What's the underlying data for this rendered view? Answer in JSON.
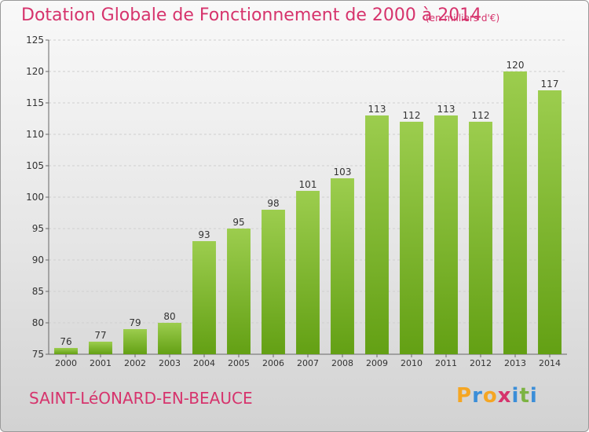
{
  "chart_data": {
    "type": "bar",
    "title": "Dotation Globale de Fonctionnement de 2000 à 2014",
    "subtitle": "(en milliers d'€)",
    "categories": [
      "2000",
      "2001",
      "2002",
      "2003",
      "2004",
      "2005",
      "2006",
      "2007",
      "2008",
      "2009",
      "2010",
      "2011",
      "2012",
      "2013",
      "2014"
    ],
    "values": [
      76,
      77,
      79,
      80,
      93,
      95,
      98,
      101,
      103,
      113,
      112,
      113,
      112,
      120,
      117
    ],
    "ylim": [
      75,
      125
    ],
    "yticks": [
      75,
      80,
      85,
      90,
      95,
      100,
      105,
      110,
      115,
      120,
      125
    ],
    "grid": true,
    "bar_color_top": "#9ccd4e",
    "bar_color_bottom": "#63a014",
    "xlabel": "",
    "ylabel": ""
  },
  "footer": {
    "commune": "SAINT-LéONARD-EN-BEAUCE",
    "logo_letters": [
      "P",
      "r",
      "o",
      "x",
      "i",
      "t",
      "i"
    ],
    "logo_colors": [
      "#f5a623",
      "#3b8ed8",
      "#f5a623",
      "#d6336c",
      "#3b8ed8",
      "#7cb342",
      "#3b8ed8"
    ]
  },
  "colors": {
    "title": "#d6336c",
    "axis_text": "#333333"
  }
}
